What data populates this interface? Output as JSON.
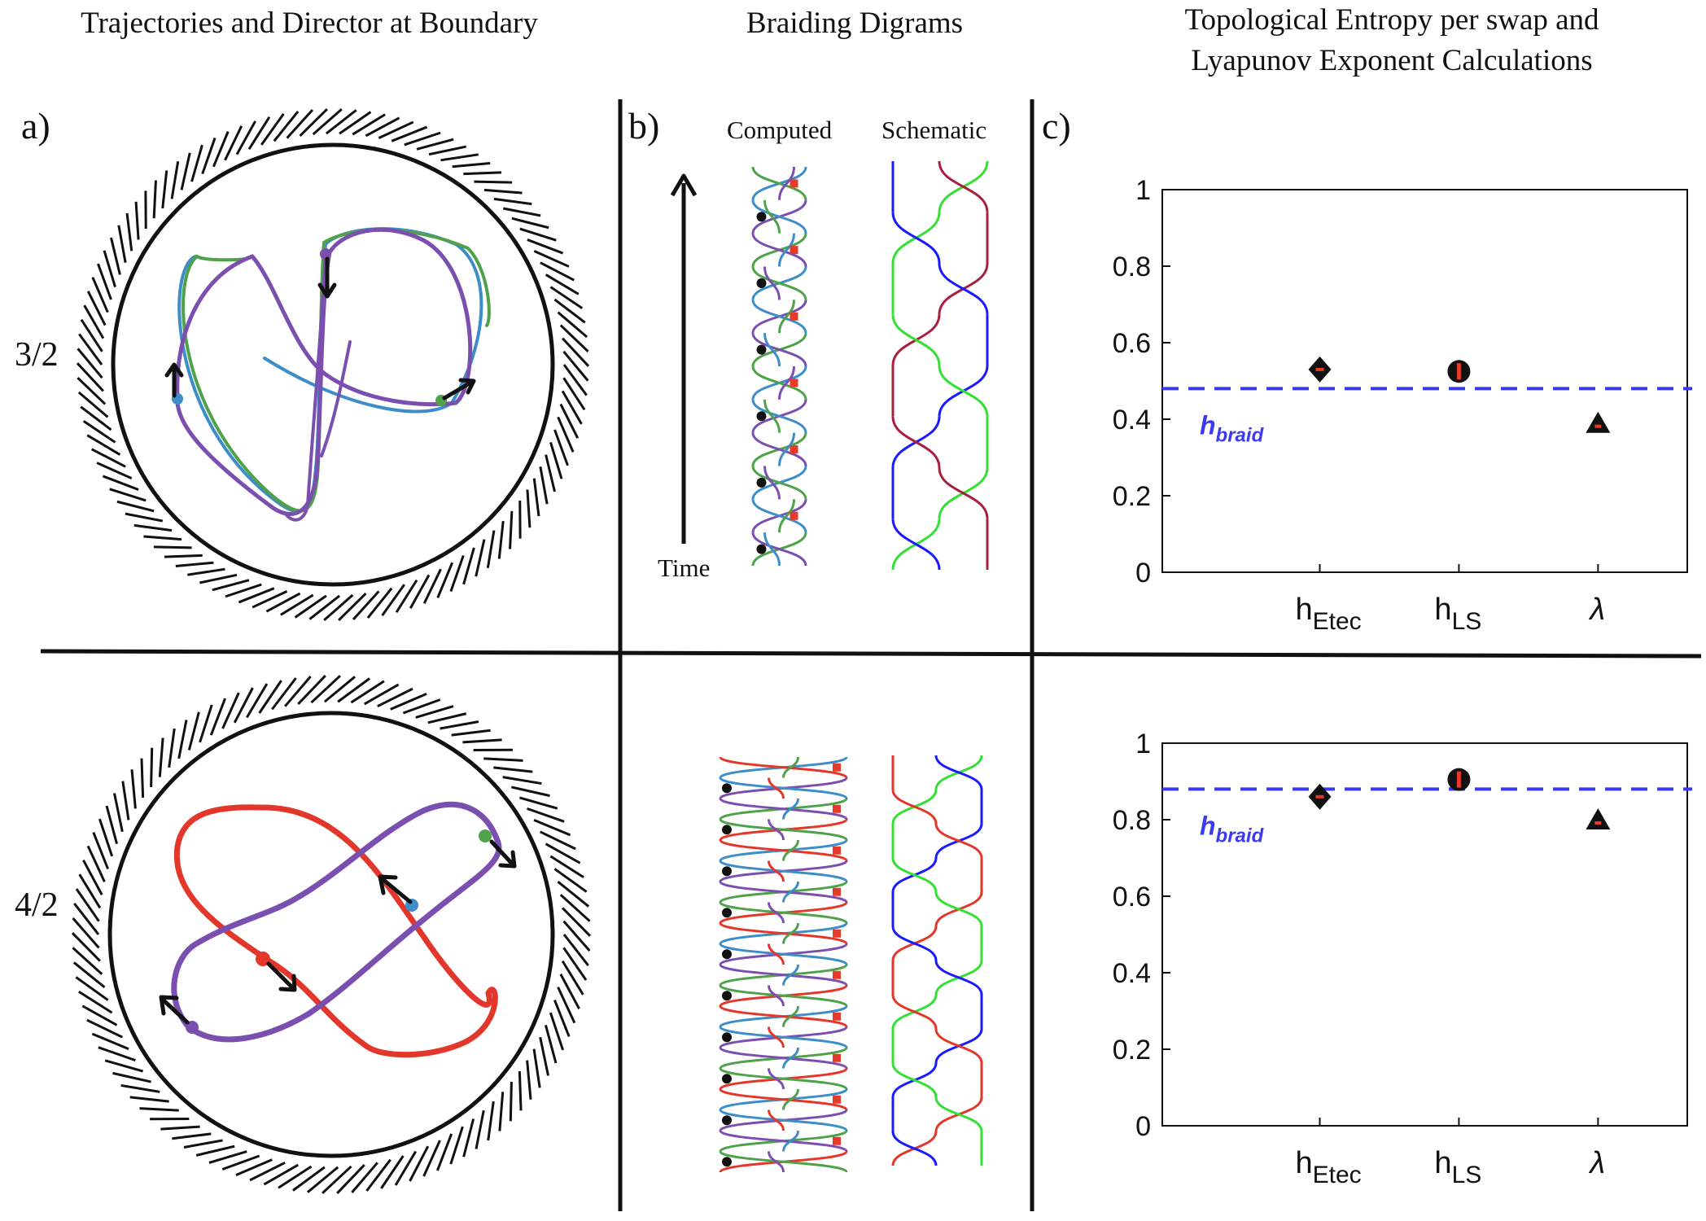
{
  "headers": {
    "col1": "Trajectories and Director at Boundary",
    "col2": "Braiding Digrams",
    "col3_line1": "Topological Entropy per swap and",
    "col3_line2": "Lyapunov Exponent Calculations"
  },
  "panel_labels": {
    "a": "a)",
    "b": "b)",
    "c": "c)"
  },
  "row_labels": {
    "top": "3/2",
    "bottom": "4/2"
  },
  "braid_labels": {
    "computed": "Computed",
    "schematic": "Schematic",
    "time": "Time"
  },
  "colors": {
    "purple": "#7b4fb0",
    "blue": "#3c8dc8",
    "green": "#4fa24a",
    "red": "#e3372b",
    "schem_red": "#a8203f",
    "schem_green": "#33e033",
    "schem_blue": "#1a1aff",
    "hline": "#3a3af0",
    "marker_dot": "#e83a2a"
  },
  "chart_data": [
    {
      "type": "scatter",
      "title": "3/2",
      "categories": [
        "h_Etec",
        "h_LS",
        "λ"
      ],
      "xtick_labels": [
        {
          "base": "h",
          "sub": "Etec"
        },
        {
          "base": "h",
          "sub": "LS"
        },
        {
          "base": "λ",
          "sub": ""
        }
      ],
      "values": [
        0.53,
        0.525,
        0.39
      ],
      "markers": [
        "diamond",
        "circle",
        "triangle"
      ],
      "ylim": [
        0,
        1
      ],
      "yticks": [
        "0",
        "0.2",
        "0.4",
        "0.6",
        "0.8",
        "1"
      ],
      "hline": {
        "value": 0.48,
        "label_base": "h",
        "label_sub": "braid"
      }
    },
    {
      "type": "scatter",
      "title": "4/2",
      "categories": [
        "h_Etec",
        "h_LS",
        "λ"
      ],
      "xtick_labels": [
        {
          "base": "h",
          "sub": "Etec"
        },
        {
          "base": "h",
          "sub": "LS"
        },
        {
          "base": "λ",
          "sub": ""
        }
      ],
      "values": [
        0.86,
        0.905,
        0.8
      ],
      "markers": [
        "diamond",
        "circle",
        "triangle"
      ],
      "ylim": [
        0,
        1
      ],
      "yticks": [
        "0",
        "0.2",
        "0.4",
        "0.6",
        "0.8",
        "1"
      ],
      "hline": {
        "value": 0.88,
        "label_base": "h",
        "label_sub": "braid"
      }
    }
  ]
}
